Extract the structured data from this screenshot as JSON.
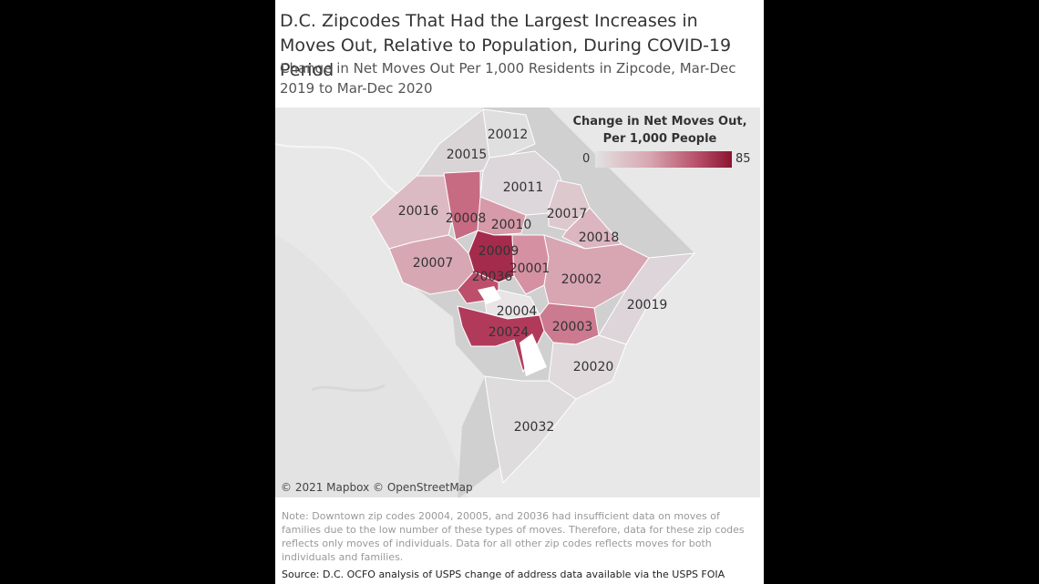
{
  "title": "D.C. Zipcodes That Had the Largest Increases in Moves Out, Relative to Population, During COVID-19 Period",
  "subtitle": "Change in Net Moves Out Per 1,000 Residents in Zipcode, Mar-Dec 2019 to Mar-Dec 2020",
  "legend": {
    "title": "Change in Net Moves Out, Per 1,000 People",
    "min": "0",
    "max": "85",
    "color_low": "#e2e2e2",
    "color_high": "#8c1330"
  },
  "map": {
    "attribution": "© 2021 Mapbox © OpenStreetMap",
    "zipcodes": [
      {
        "zip": "20012"
      },
      {
        "zip": "20015"
      },
      {
        "zip": "20011"
      },
      {
        "zip": "20016"
      },
      {
        "zip": "20008"
      },
      {
        "zip": "20010"
      },
      {
        "zip": "20017"
      },
      {
        "zip": "20018"
      },
      {
        "zip": "20009"
      },
      {
        "zip": "20007"
      },
      {
        "zip": "20001"
      },
      {
        "zip": "20036"
      },
      {
        "zip": "20002"
      },
      {
        "zip": "20019"
      },
      {
        "zip": "20004"
      },
      {
        "zip": "20003"
      },
      {
        "zip": "20024"
      },
      {
        "zip": "20020"
      },
      {
        "zip": "20032"
      }
    ]
  },
  "note": "Note: Downtown zip codes 20004, 20005, and 20036 had insufficient data on moves of families due to the low number of these types of moves. Therefore, data for these zip codes reflects only moves of individuals. Data for all other zip codes reflects moves for both individuals and families.",
  "source": "Source: D.C. OCFO analysis of USPS change of address data available via the USPS FOIA library"
}
